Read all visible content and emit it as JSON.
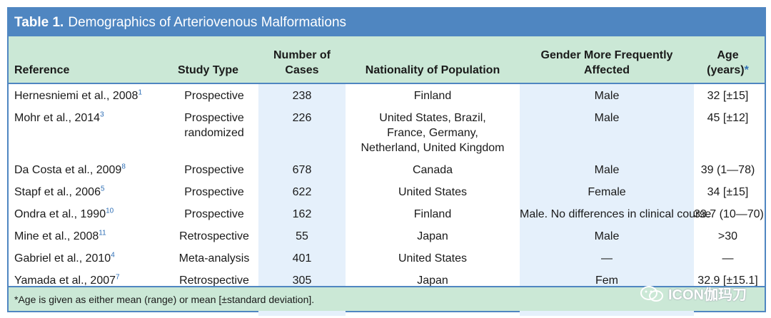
{
  "table": {
    "title_bold": "Table 1.",
    "title_rest": "Demographics of Arteriovenous Malformations",
    "headers": {
      "reference": "Reference",
      "study_type": "Study Type",
      "cases_line1": "Number of",
      "cases_line2": "Cases",
      "nationality": "Nationality of Population",
      "gender": "Gender More Frequently Affected",
      "age_line1": "Age",
      "age_line2": "(years)",
      "age_asterisk": "*"
    },
    "rows": [
      {
        "ref": "Hernesniemi et al., 2008",
        "sup": "1",
        "type": "Prospective",
        "cases": "238",
        "nat": "Finland",
        "gender": "Male",
        "age": "32 [±15]"
      },
      {
        "ref": "Mohr et al., 2014",
        "sup": "3",
        "type": "Prospective randomized",
        "cases": "226",
        "nat": "United States, Brazil, France, Germany, Netherland, United Kingdom",
        "gender": "Male",
        "age": "45 [±12]"
      },
      {
        "ref": "Da Costa et al., 2009",
        "sup": "8",
        "type": "Prospective",
        "cases": "678",
        "nat": "Canada",
        "gender": "Male",
        "age": "39 (1—78)"
      },
      {
        "ref": "Stapf et al., 2006",
        "sup": "5",
        "type": "Prospective",
        "cases": "622",
        "nat": "United States",
        "gender": "Female",
        "age": "34 [±15]"
      },
      {
        "ref": "Ondra et al., 1990",
        "sup": "10",
        "type": "Prospective",
        "cases": "162",
        "nat": "Finland",
        "gender": "Male. No differences in clinical course",
        "age": "33.7 (10—70)"
      },
      {
        "ref": "Mine et al., 2008",
        "sup": "11",
        "type": "Retrospective",
        "cases": "55",
        "nat": "Japan",
        "gender": "Male",
        "age": ">30"
      },
      {
        "ref": "Gabriel et al., 2010",
        "sup": "4",
        "type": "Meta-analysis",
        "cases": "401",
        "nat": "United States",
        "gender": "—",
        "age": "—"
      },
      {
        "ref": "Yamada et al., 2007",
        "sup": "7",
        "type": "Retrospective",
        "cases": "305",
        "nat": "Japan",
        "gender": "Fem",
        "age": "32.9 [±15.1]"
      }
    ],
    "footnote": "*Age is given as either mean (range) or mean [±standard deviation]."
  },
  "watermark": {
    "text": "ICON伽玛刀",
    "icon": "wechat-icon"
  }
}
